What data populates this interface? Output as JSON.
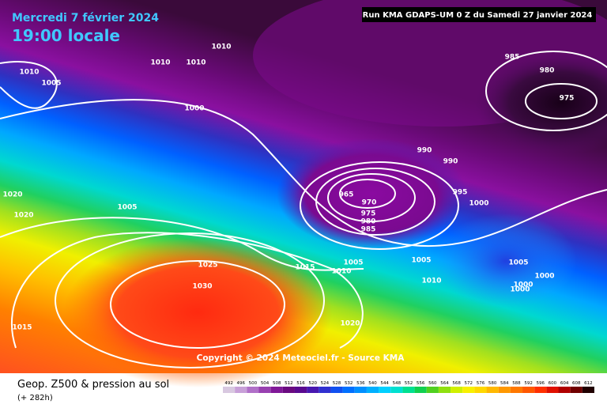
{
  "header": {
    "date": "Mercredi 7 février 2024",
    "time": "19:00 locale",
    "run": "Run KMA GDAPS-UM 0 Z du Samedi 27 janvier 2024"
  },
  "isobar_labels": [
    "1010",
    "1005",
    "1010",
    "1010",
    "1010",
    "1000",
    "985",
    "980",
    "975",
    "990",
    "990",
    "965",
    "970",
    "975",
    "980",
    "985",
    "995",
    "1000",
    "1005",
    "1020",
    "1020",
    "1025",
    "1015",
    "1005",
    "1010",
    "1005",
    "1005",
    "1010",
    "1000",
    "1000",
    "1000",
    "1030",
    "1015",
    "1020"
  ],
  "copyright": "Copyright © 2024 Meteociel.fr - Source KMA",
  "footer": {
    "title": "Geop. Z500 & pression au sol",
    "lead": "(+ 282h)"
  },
  "legend": {
    "labels": [
      "492",
      "496",
      "500",
      "504",
      "508",
      "512",
      "516",
      "520",
      "524",
      "528",
      "532",
      "536",
      "540",
      "544",
      "548",
      "552",
      "556",
      "560",
      "564",
      "568",
      "572",
      "576",
      "580",
      "584",
      "588",
      "592",
      "596",
      "600",
      "604",
      "608",
      "612"
    ],
    "colors": [
      "#d8c8e0",
      "#c8a0d8",
      "#b070c8",
      "#9840b0",
      "#801898",
      "#6a0a80",
      "#5a0a90",
      "#4818b0",
      "#3030d0",
      "#1050f0",
      "#0070ff",
      "#0090ff",
      "#00b0ff",
      "#00d0ff",
      "#00e0d0",
      "#00e090",
      "#10d050",
      "#50d020",
      "#90e010",
      "#d0f000",
      "#f8f000",
      "#ffd800",
      "#ffb800",
      "#ff9800",
      "#ff7800",
      "#ff5800",
      "#ff3000",
      "#e01000",
      "#b00000",
      "#700000",
      "#200000"
    ]
  }
}
